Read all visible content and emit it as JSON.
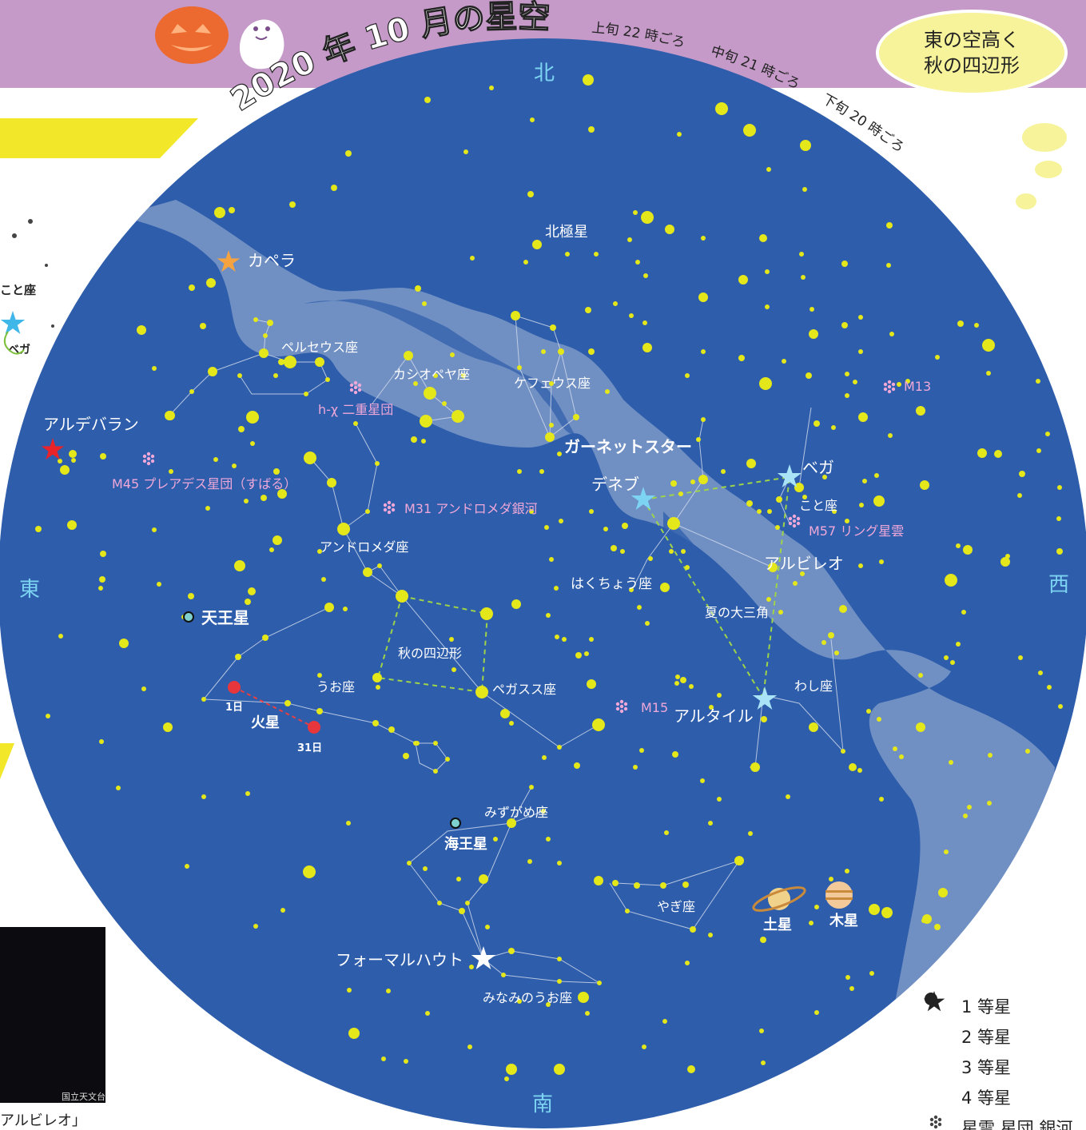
{
  "header": {
    "title": "2020 年 10 月の星空",
    "times": [
      "上旬 22 時ごろ",
      "中旬 21 時ごろ",
      "下旬 20 時ごろ"
    ]
  },
  "bubble": {
    "line1": "東の空高く",
    "line2": "秋の四辺形"
  },
  "directions": {
    "north": "北",
    "south": "南",
    "east": "東",
    "west": "西"
  },
  "labels": {
    "capella": "カペラ",
    "aldebaran": "アルデバラン",
    "perseus": "ペルセウス座",
    "cassiopeia": "カシオペヤ座",
    "cepheus": "ケフェウス座",
    "polaris": "北極星",
    "garnet": "ガーネットスター",
    "deneb": "デネブ",
    "vega": "ベガ",
    "lyra": "こと座",
    "m57": "M57 リング星雲",
    "albireo": "アルビレオ",
    "cygnus": "はくちょう座",
    "summer_triangle": "夏の大三角",
    "aquila": "わし座",
    "altair": "アルタイル",
    "m13": "M13",
    "m15": "M15",
    "hchi": "h-χ 二重星団",
    "m45": "M45 プレアデス星団（すばる）",
    "m31": "M31 アンドロメダ銀河",
    "andromeda": "アンドロメダ座",
    "square": "秋の四辺形",
    "pegasus": "ペガスス座",
    "pisces": "うお座",
    "uranus": "天王星",
    "mars": "火星",
    "mars_day1": "1日",
    "mars_day31": "31日",
    "aquarius": "みずがめ座",
    "neptune": "海王星",
    "capricornus": "やぎ座",
    "saturn": "土星",
    "jupiter": "木星",
    "fomalhaut": "フォーマルハウト",
    "pisaus": "みなみのうお座"
  },
  "left_panel": {
    "lyra_small": "こと座",
    "vega_small": "ベガ"
  },
  "legend": [
    {
      "symbol": "star-1st",
      "label": "1 等星"
    },
    {
      "symbol": "dot-2nd",
      "label": "2 等星"
    },
    {
      "symbol": "dot-3rd",
      "label": "3 等星"
    },
    {
      "symbol": "dot-4th",
      "label": "4 等星"
    },
    {
      "symbol": "nebula",
      "label": "星雲 星団 銀河"
    }
  ],
  "photo": {
    "credit": "国立天文台",
    "caption": "アルビレオ」"
  },
  "colors": {
    "sky": "#2d5dab",
    "star": "#e4e719",
    "milky_way": "#a8b9d8",
    "header": "#c59ac9",
    "star_1st_blue": "#7dd4f2",
    "capella": "#f5a341",
    "aldebaran": "#e8232a",
    "nebula_label": "#f0a8d8",
    "banner": "#f2e829"
  }
}
